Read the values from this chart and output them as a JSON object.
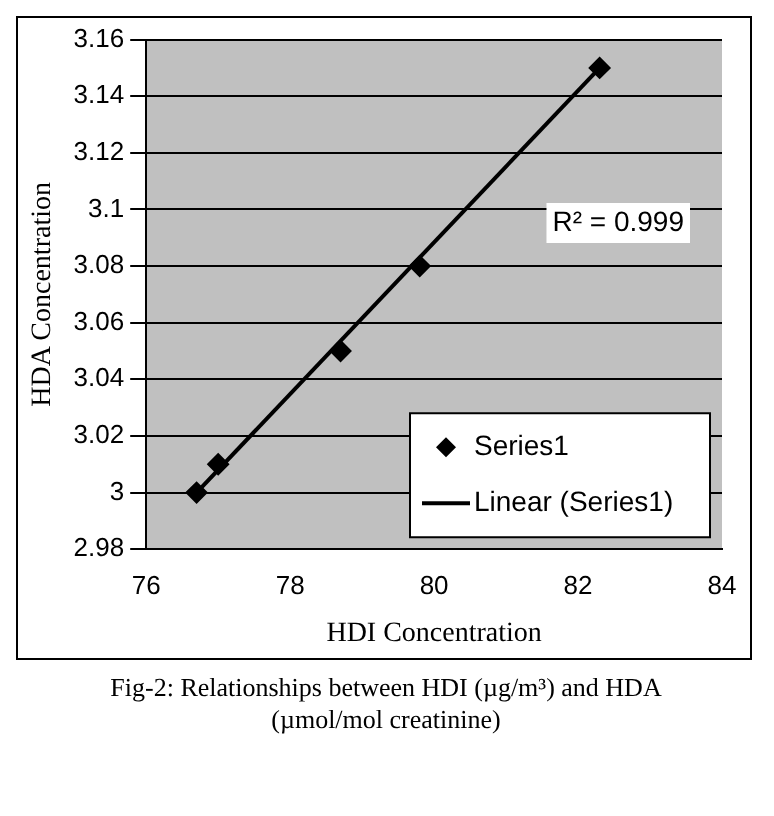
{
  "chart_data": {
    "type": "scatter",
    "xlabel": "HDI Concentration",
    "ylabel": "HDA Concentration",
    "xlim": [
      76,
      84
    ],
    "xticks": [
      76,
      78,
      80,
      82,
      84
    ],
    "ylim": [
      2.98,
      3.16
    ],
    "yticks": [
      2.98,
      3,
      3.02,
      3.04,
      3.06,
      3.08,
      3.1,
      3.12,
      3.14,
      3.16
    ],
    "grid": "y",
    "legend": "bottom right",
    "series": [
      {
        "name": "Series1",
        "type": "scatter",
        "color": "#000000",
        "marker": "diamond",
        "x": [
          76.7,
          77.0,
          78.7,
          79.8,
          82.3
        ],
        "values": [
          3.0,
          3.01,
          3.05,
          3.08,
          3.15
        ]
      },
      {
        "name": "Linear (Series1)",
        "type": "line",
        "color": "#000000",
        "marker": "none",
        "line_style": "solid",
        "x": [
          76.7,
          82.3
        ],
        "values": [
          3.0,
          3.15
        ]
      }
    ],
    "annotations": [
      "R² = 0.999",
      "Fig-2: Relationships between HDI (µg/m³) and HDA (µmol/mol creatinine)"
    ]
  }
}
